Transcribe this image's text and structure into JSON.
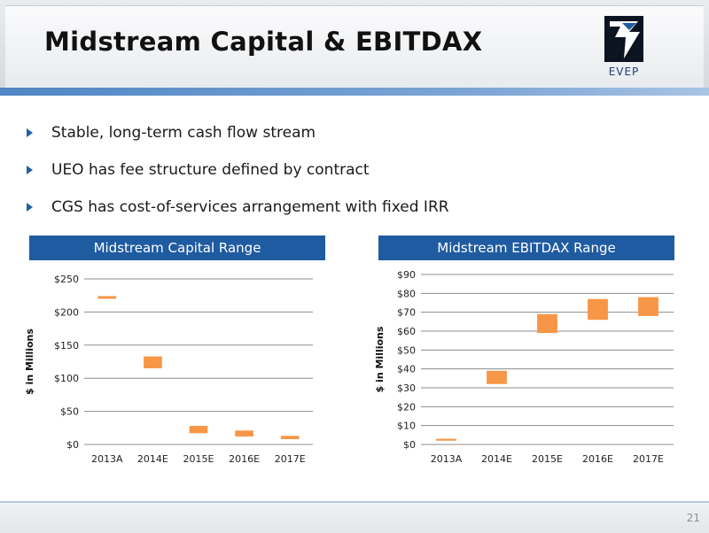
{
  "title": "Midstream Capital & EBITDAX",
  "logo": {
    "text": "EVEP"
  },
  "bullets": [
    "Stable, long-term cash flow stream",
    "UEO has fee structure defined by contract",
    "CGS has cost-of-services arrangement with fixed IRR"
  ],
  "page_number": "21",
  "colors": {
    "bar": "#f79646",
    "panel_header": "#1f5ba0",
    "accent": "#4f86c3"
  },
  "chart_data": [
    {
      "type": "bar",
      "title": "Midstream Capital Range",
      "ylabel": "$ in Millions",
      "categories": [
        "2013A",
        "2014E",
        "2015E",
        "2016E",
        "2017E"
      ],
      "ranges": [
        [
          220,
          224
        ],
        [
          115,
          133
        ],
        [
          17,
          28
        ],
        [
          12,
          21
        ],
        [
          8,
          13
        ]
      ],
      "ylim": [
        0,
        250
      ],
      "yticks": [
        0,
        50,
        100,
        150,
        200,
        250
      ],
      "ytick_labels": [
        "$0",
        "$50",
        "$100",
        "$150",
        "$200",
        "$250"
      ],
      "grid": true
    },
    {
      "type": "bar",
      "title": "Midstream EBITDAX Range",
      "ylabel": "$ in Millions",
      "categories": [
        "2013A",
        "2014E",
        "2015E",
        "2016E",
        "2017E"
      ],
      "ranges": [
        [
          2,
          3
        ],
        [
          32,
          39
        ],
        [
          59,
          69
        ],
        [
          66,
          77
        ],
        [
          68,
          78
        ]
      ],
      "ylim": [
        0,
        90
      ],
      "yticks": [
        0,
        10,
        20,
        30,
        40,
        50,
        60,
        70,
        80,
        90
      ],
      "ytick_labels": [
        "$0",
        "$10",
        "$20",
        "$30",
        "$40",
        "$50",
        "$60",
        "$70",
        "$80",
        "$90"
      ],
      "grid": true
    }
  ]
}
